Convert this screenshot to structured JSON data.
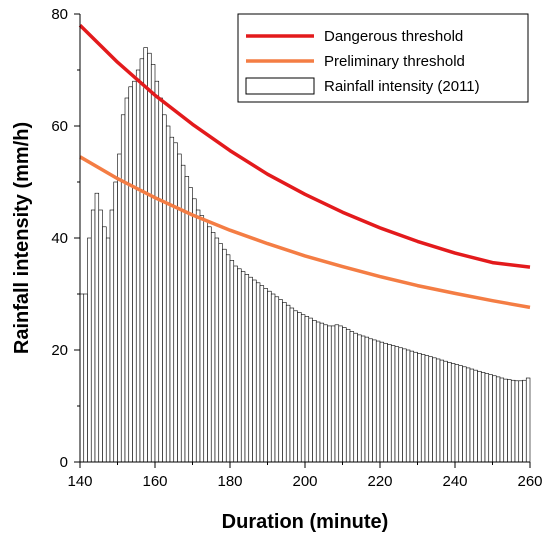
{
  "chart_data": {
    "type": "bar",
    "xlabel": "Duration (minute)",
    "ylabel": "Rainfall intensity (mm/h)",
    "xlim": [
      140,
      260
    ],
    "ylim": [
      0,
      80
    ],
    "x_ticks": [
      140,
      160,
      180,
      200,
      220,
      240,
      260
    ],
    "y_ticks": [
      0,
      20,
      40,
      60,
      80
    ],
    "legend_position": "top-right",
    "series": [
      {
        "name": "Dangerous threshold",
        "kind": "line",
        "color": "#e31a1c",
        "x": [
          140,
          150,
          160,
          170,
          180,
          190,
          200,
          210,
          220,
          230,
          240,
          250,
          260
        ],
        "values": [
          78,
          71.4,
          65.5,
          60.3,
          55.6,
          51.4,
          47.8,
          44.6,
          41.8,
          39.4,
          37.3,
          35.6,
          34.8
        ]
      },
      {
        "name": "Preliminary threshold",
        "kind": "line",
        "color": "#f47d44",
        "x": [
          140,
          150,
          160,
          170,
          180,
          190,
          200,
          210,
          220,
          230,
          240,
          250,
          260
        ],
        "values": [
          54.5,
          50.6,
          47.2,
          44.1,
          41.4,
          39.0,
          36.8,
          34.9,
          33.1,
          31.5,
          30.1,
          28.8,
          27.6
        ]
      },
      {
        "name": "Rainfall intensity (2011)",
        "kind": "bar",
        "color": "#000000",
        "x_start": 140,
        "x_step": 1,
        "values": [
          30,
          30,
          40,
          45,
          48,
          45,
          42,
          40,
          45,
          50,
          55,
          62,
          65,
          67,
          68,
          70,
          72,
          74,
          73,
          71,
          68,
          65,
          62,
          60,
          58,
          57,
          55,
          53,
          51,
          49,
          47,
          45,
          44,
          43,
          42,
          41,
          40,
          39,
          38,
          37,
          36,
          35,
          34.5,
          34,
          33.5,
          33,
          32.5,
          32,
          31.5,
          31,
          30.5,
          30,
          29.5,
          29,
          28.5,
          28,
          27.5,
          27,
          26.7,
          26.3,
          26,
          25.7,
          25.3,
          25,
          24.8,
          24.5,
          24.3,
          24.3,
          24.5,
          24.3,
          24,
          23.7,
          23.3,
          23,
          22.7,
          22.5,
          22.3,
          22,
          21.8,
          21.6,
          21.4,
          21.2,
          21,
          20.8,
          20.6,
          20.4,
          20.2,
          20,
          19.8,
          19.6,
          19.4,
          19.2,
          19,
          18.8,
          18.6,
          18.4,
          18.2,
          18,
          17.8,
          17.6,
          17.4,
          17.2,
          17,
          16.8,
          16.6,
          16.4,
          16.2,
          16,
          15.8,
          15.6,
          15.4,
          15.2,
          15,
          14.8,
          14.7,
          14.6,
          14.5,
          14.5,
          14.6,
          15,
          16,
          17,
          17.8,
          18.5,
          19
        ]
      }
    ]
  }
}
